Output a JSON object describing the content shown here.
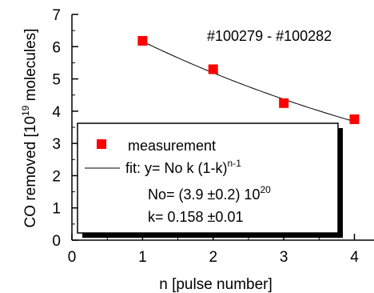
{
  "chart_data": {
    "type": "scatter",
    "annotation": "#100279 - #100282",
    "xlabel": "n [pulse number]",
    "ylabel": {
      "main": "CO removed [10",
      "exp": "19",
      "tail": " molecules]"
    },
    "xlim": [
      0,
      4.3
    ],
    "ylim": [
      0,
      7
    ],
    "xticks": [
      "0",
      "1",
      "2",
      "3",
      "4"
    ],
    "yticks": [
      "0",
      "1",
      "2",
      "3",
      "4",
      "5",
      "6",
      "7"
    ],
    "series": [
      {
        "name": "measurement",
        "kind": "markers",
        "color": "#ff0000",
        "x": [
          1,
          2,
          3,
          4
        ],
        "y": [
          6.18,
          5.3,
          4.25,
          3.75
        ]
      },
      {
        "name": "fit",
        "kind": "line",
        "color": "#000000",
        "No": 39,
        "k": 0.158,
        "x_range": [
          1,
          4
        ]
      }
    ],
    "legend": {
      "placement": "bottom-left",
      "measurement_label": "measurement",
      "fit_label": {
        "main": "fit: y= No k (1-k)",
        "exp": "n-1"
      },
      "no_text": {
        "main": "No= (3.9 ±0.2) 10",
        "exp": "20"
      },
      "k_text": "k= 0.158 ±0.01"
    },
    "grid": false
  }
}
